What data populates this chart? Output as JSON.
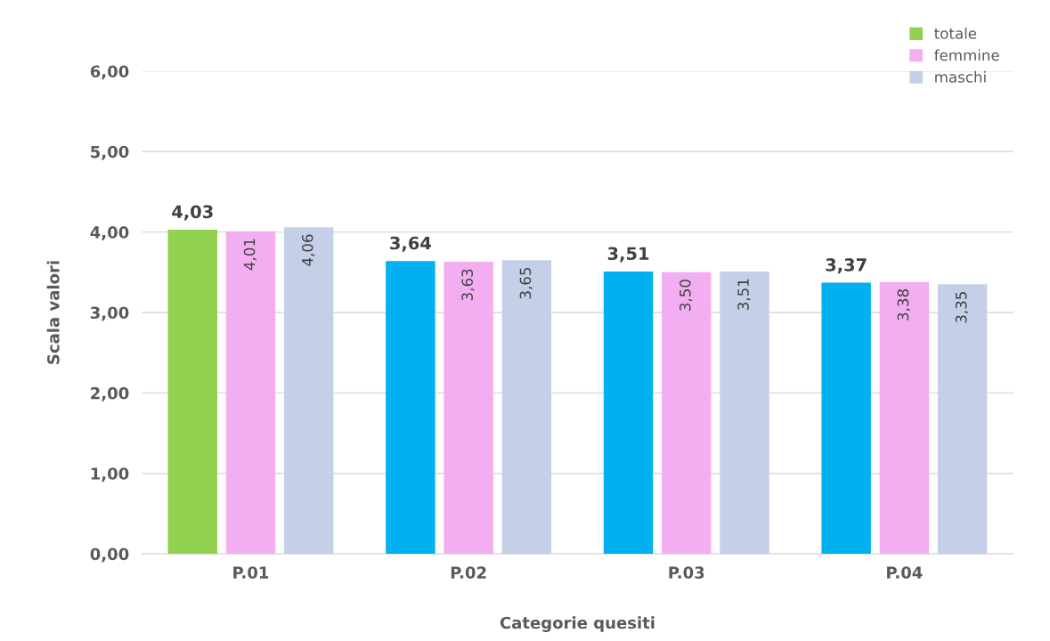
{
  "chart_data": {
    "type": "bar",
    "xlabel": "Categorie quesiti",
    "ylabel": "Scala valori",
    "categories": [
      "P.01",
      "P.02",
      "P.03",
      "P.04"
    ],
    "series": [
      {
        "name": "totale",
        "color": "#92d050",
        "colors": [
          "#92d050",
          "#00b0f0",
          "#00b0f0",
          "#00b0f0"
        ],
        "values": [
          4.03,
          3.64,
          3.51,
          3.37
        ],
        "value_labels": [
          "4,03",
          "3,64",
          "3,51",
          "3,37"
        ]
      },
      {
        "name": "femmine",
        "color": "#f2aef0",
        "values": [
          4.01,
          3.63,
          3.5,
          3.38
        ],
        "value_labels": [
          "4,01",
          "3,63",
          "3,50",
          "3,38"
        ]
      },
      {
        "name": "maschi",
        "color": "#c5d0e8",
        "values": [
          4.06,
          3.65,
          3.51,
          3.35
        ],
        "value_labels": [
          "4,06",
          "3,65",
          "3,51",
          "3,35"
        ]
      }
    ],
    "ylim": [
      0,
      6
    ],
    "yticks": [
      {
        "value": 0,
        "label": "0,00"
      },
      {
        "value": 1,
        "label": "1,00"
      },
      {
        "value": 2,
        "label": "2,00"
      },
      {
        "value": 3,
        "label": "3,00"
      },
      {
        "value": 4,
        "label": "4,00"
      },
      {
        "value": 5,
        "label": "5,00"
      },
      {
        "value": 6,
        "label": "6,00"
      }
    ],
    "grid": "y",
    "legend": "top right"
  }
}
